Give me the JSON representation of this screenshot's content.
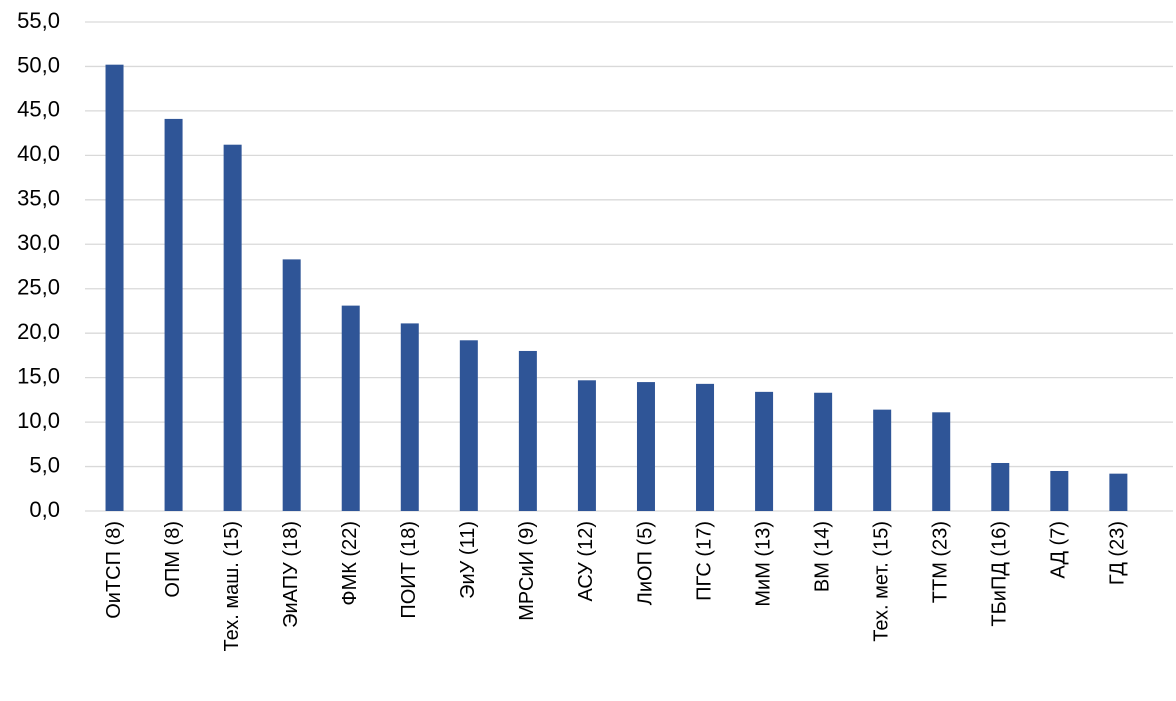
{
  "chart_data": {
    "type": "bar",
    "categories": [
      "ОиТСП (8)",
      "ОПМ (8)",
      "Тех. маш. (15)",
      "ЭиАПУ (18)",
      "ФМК (22)",
      "ПОИТ (18)",
      "ЭиУ (11)",
      "МРСиИ (9)",
      "АСУ (12)",
      "ЛиОП (5)",
      "ПГС (17)",
      "МиМ (13)",
      "ВМ (14)",
      "Тех. мет. (15)",
      "ТТМ (23)",
      "ТБиПД (16)",
      "АД (7)",
      "ГД (23)"
    ],
    "values": [
      50.2,
      44.1,
      41.2,
      28.3,
      23.1,
      21.1,
      19.2,
      18.0,
      14.7,
      14.5,
      14.3,
      13.4,
      13.3,
      11.4,
      11.1,
      5.4,
      4.5,
      4.2
    ],
    "color": "#2f5597",
    "ylim": [
      0,
      55
    ],
    "yticks": [
      {
        "value": 0,
        "label": "0,0"
      },
      {
        "value": 5,
        "label": "5,0"
      },
      {
        "value": 10,
        "label": "10,0"
      },
      {
        "value": 15,
        "label": "15,0"
      },
      {
        "value": 20,
        "label": "20,0"
      },
      {
        "value": 25,
        "label": "25,0"
      },
      {
        "value": 30,
        "label": "30,0"
      },
      {
        "value": 35,
        "label": "35,0"
      },
      {
        "value": 40,
        "label": "40,0"
      },
      {
        "value": 45,
        "label": "45,0"
      },
      {
        "value": 50,
        "label": "50,0"
      },
      {
        "value": 55,
        "label": "55,0"
      }
    ],
    "grid": true
  }
}
